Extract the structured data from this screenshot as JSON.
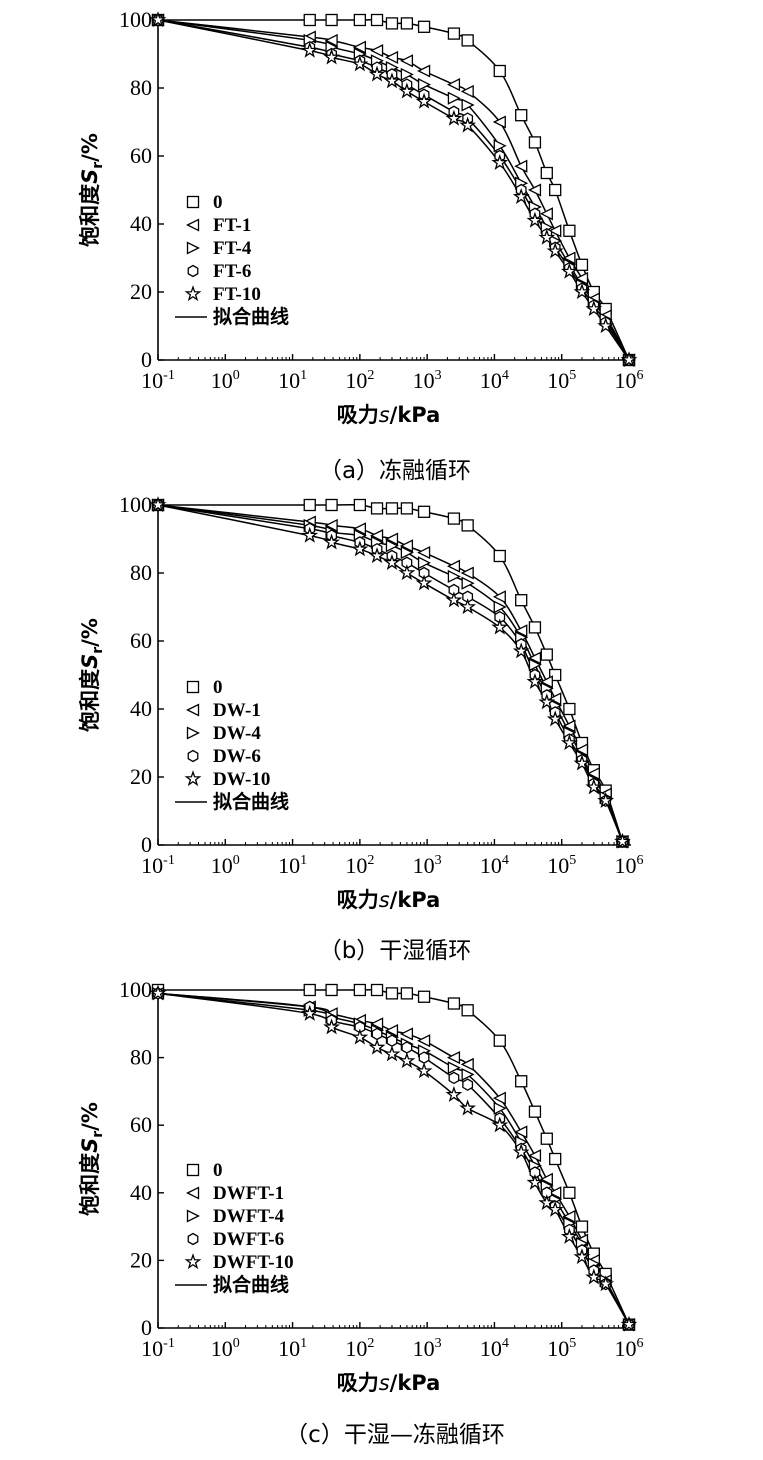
{
  "figure": {
    "panels": [
      {
        "caption": "（a）冻融循环",
        "legend": [
          "0",
          "FT-1",
          "FT-4",
          "FT-6",
          "FT-10",
          "拟合曲线"
        ],
        "ylabel": {
          "prefix": "饱和度",
          "var": "S",
          "sub": "r",
          "suffix": "/%"
        },
        "xlabel": {
          "prefix": "吸力",
          "var": "s",
          "suffix": "/kPa"
        }
      },
      {
        "caption": "（b）干湿循环",
        "legend": [
          "0",
          "DW-1",
          "DW-4",
          "DW-6",
          "DW-10",
          "拟合曲线"
        ],
        "ylabel": {
          "prefix": "饱和度",
          "var": "S",
          "sub": "r",
          "suffix": "/%"
        },
        "xlabel": {
          "prefix": "吸力",
          "var": "s",
          "suffix": "/kPa"
        }
      },
      {
        "caption": "（c）干湿—冻融循环",
        "legend": [
          "0",
          "DWFT-1",
          "DWFT-4",
          "DWFT-6",
          "DWFT-10",
          "拟合曲线"
        ],
        "ylabel": {
          "prefix": "饱和度",
          "var": "S",
          "sub": "r",
          "suffix": "/%"
        },
        "xlabel": {
          "prefix": "吸力",
          "var": "s",
          "suffix": "/kPa"
        }
      }
    ]
  },
  "chart_data": [
    {
      "type": "scatter",
      "title": "",
      "xlabel": "吸力s/kPa",
      "ylabel": "饱和度Sr/%",
      "xscale": "log",
      "xlim": [
        0.1,
        1000000
      ],
      "ylim": [
        0,
        100
      ],
      "xticks": [
        "10^-1",
        "10^0",
        "10^1",
        "10^2",
        "10^3",
        "10^4",
        "10^5",
        "10^6"
      ],
      "yticks": [
        0,
        20,
        40,
        60,
        80,
        100
      ],
      "legend_position": "left",
      "grid": false,
      "x": [
        0.1,
        18,
        38,
        100,
        180,
        300,
        500,
        900,
        2500,
        4000,
        12000,
        25000,
        40000,
        60000,
        80000,
        130000,
        200000,
        300000,
        450000,
        1000000
      ],
      "series": [
        {
          "name": "0",
          "marker": "square",
          "values": [
            100,
            100,
            100,
            100,
            100,
            99,
            99,
            98,
            96,
            94,
            85,
            72,
            64,
            55,
            50,
            38,
            28,
            20,
            15,
            0
          ]
        },
        {
          "name": "FT-1",
          "marker": "triangle-left",
          "values": [
            100,
            95,
            94,
            92,
            91,
            89,
            88,
            85,
            81,
            79,
            70,
            57,
            50,
            43,
            38,
            30,
            24,
            18,
            13,
            0
          ]
        },
        {
          "name": "FT-4",
          "marker": "triangle-right",
          "values": [
            100,
            94,
            92,
            90,
            88,
            86,
            84,
            81,
            77,
            75,
            63,
            52,
            45,
            39,
            35,
            28,
            22,
            17,
            12,
            0
          ]
        },
        {
          "name": "FT-6",
          "marker": "hexagon",
          "values": [
            100,
            92,
            90,
            88,
            86,
            84,
            81,
            78,
            73,
            71,
            60,
            50,
            43,
            37,
            33,
            27,
            21,
            16,
            11,
            0
          ]
        },
        {
          "name": "FT-10",
          "marker": "star",
          "values": [
            100,
            91,
            89,
            87,
            84,
            82,
            79,
            76,
            71,
            69,
            58,
            48,
            41,
            36,
            32,
            26,
            20,
            15,
            10,
            0
          ]
        }
      ],
      "fit_line_label": "拟合曲线"
    },
    {
      "type": "scatter",
      "title": "",
      "xlabel": "吸力s/kPa",
      "ylabel": "饱和度Sr/%",
      "xscale": "log",
      "xlim": [
        0.1,
        1000000
      ],
      "ylim": [
        0,
        100
      ],
      "xticks": [
        "10^-1",
        "10^0",
        "10^1",
        "10^2",
        "10^3",
        "10^4",
        "10^5",
        "10^6"
      ],
      "yticks": [
        0,
        20,
        40,
        60,
        80,
        100
      ],
      "legend_position": "left",
      "grid": false,
      "x": [
        0.1,
        18,
        38,
        100,
        180,
        300,
        500,
        900,
        2500,
        4000,
        12000,
        25000,
        40000,
        60000,
        80000,
        130000,
        200000,
        300000,
        450000,
        800000
      ],
      "series": [
        {
          "name": "0",
          "marker": "square",
          "values": [
            100,
            100,
            100,
            100,
            99,
            99,
            99,
            98,
            96,
            94,
            85,
            72,
            64,
            56,
            50,
            40,
            30,
            22,
            16,
            1
          ]
        },
        {
          "name": "DW-1",
          "marker": "triangle-left",
          "values": [
            100,
            95,
            94,
            93,
            91,
            90,
            88,
            86,
            82,
            80,
            73,
            63,
            55,
            48,
            43,
            35,
            28,
            21,
            15,
            1
          ]
        },
        {
          "name": "DW-4",
          "marker": "triangle-right",
          "values": [
            100,
            94,
            92,
            91,
            89,
            88,
            86,
            83,
            79,
            77,
            70,
            61,
            53,
            46,
            41,
            33,
            26,
            19,
            14,
            1
          ]
        },
        {
          "name": "DW-6",
          "marker": "hexagon",
          "values": [
            100,
            93,
            91,
            89,
            87,
            85,
            83,
            80,
            75,
            73,
            67,
            59,
            50,
            44,
            39,
            31,
            25,
            18,
            13,
            1
          ]
        },
        {
          "name": "DW-10",
          "marker": "star",
          "values": [
            100,
            91,
            89,
            87,
            85,
            83,
            80,
            77,
            72,
            70,
            64,
            57,
            48,
            42,
            37,
            30,
            24,
            17,
            13,
            1
          ]
        }
      ],
      "fit_line_label": "拟合曲线"
    },
    {
      "type": "scatter",
      "title": "",
      "xlabel": "吸力s/kPa",
      "ylabel": "饱和度Sr/%",
      "xscale": "log",
      "xlim": [
        0.1,
        1000000
      ],
      "ylim": [
        0,
        100
      ],
      "xticks": [
        "10^-1",
        "10^0",
        "10^1",
        "10^2",
        "10^3",
        "10^4",
        "10^5",
        "10^6"
      ],
      "yticks": [
        0,
        20,
        40,
        60,
        80,
        100
      ],
      "legend_position": "left",
      "grid": false,
      "x": [
        0.1,
        18,
        38,
        100,
        180,
        300,
        500,
        900,
        2500,
        4000,
        12000,
        25000,
        40000,
        60000,
        80000,
        130000,
        200000,
        300000,
        450000,
        1000000
      ],
      "series": [
        {
          "name": "0",
          "marker": "square",
          "values": [
            100,
            100,
            100,
            100,
            100,
            99,
            99,
            98,
            96,
            94,
            85,
            73,
            64,
            56,
            50,
            40,
            30,
            22,
            16,
            1
          ]
        },
        {
          "name": "DWFT-1",
          "marker": "triangle-left",
          "values": [
            99,
            95,
            93,
            91,
            90,
            88,
            87,
            85,
            80,
            78,
            68,
            58,
            51,
            44,
            40,
            33,
            26,
            20,
            14,
            1
          ]
        },
        {
          "name": "DWFT-4",
          "marker": "triangle-right",
          "values": [
            99,
            94,
            92,
            90,
            88,
            86,
            84,
            82,
            77,
            75,
            65,
            55,
            48,
            42,
            38,
            31,
            25,
            19,
            14,
            1
          ]
        },
        {
          "name": "DWFT-6",
          "marker": "hexagon",
          "values": [
            99,
            95,
            91,
            89,
            87,
            85,
            83,
            80,
            74,
            72,
            62,
            53,
            46,
            40,
            36,
            29,
            23,
            17,
            13,
            1
          ]
        },
        {
          "name": "DWFT-10",
          "marker": "star",
          "values": [
            99,
            93,
            89,
            86,
            83,
            81,
            79,
            76,
            69,
            65,
            60,
            52,
            43,
            37,
            35,
            27,
            21,
            15,
            13,
            1
          ]
        }
      ],
      "fit_line_label": "拟合曲线"
    }
  ]
}
